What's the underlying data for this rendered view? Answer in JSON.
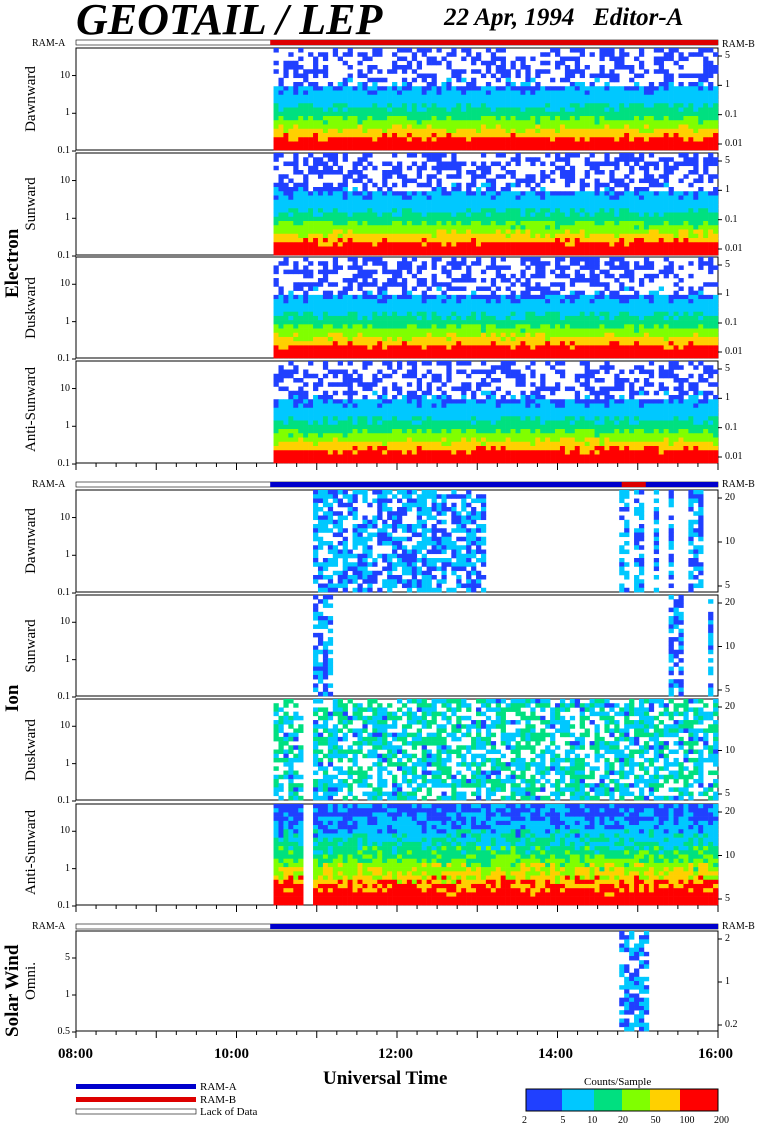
{
  "header": {
    "title": "GEOTAIL / LEP",
    "date": "22 Apr, 1994",
    "editor": "Editor-A"
  },
  "ram_labels": {
    "a": "RAM-A",
    "b": "RAM-B"
  },
  "groups": {
    "electron": "Electron",
    "ion": "Ion",
    "solar_wind": "Solar Wind"
  },
  "xaxis": {
    "label": "Universal Time",
    "ticks": [
      "08:00",
      "10:00",
      "12:00",
      "14:00",
      "16:00"
    ]
  },
  "legend": {
    "ram_a": "RAM-A",
    "ram_b": "RAM-B",
    "lack": "Lack of Data",
    "colorbar_title": "Counts/Sample",
    "colorbar_ticks": [
      "2",
      "5",
      "10",
      "20",
      "50",
      "100",
      "200"
    ]
  },
  "colors": {
    "ram_a": "#0000cc",
    "ram_b": "#dd0000"
  },
  "chart_data": {
    "type": "heatmap",
    "x_range_ut_hours": [
      8,
      16
    ],
    "panels": [
      {
        "group": "Electron",
        "name": "Dawnward",
        "left_ticks": [
          "10",
          "1",
          "0.1"
        ],
        "right_ticks": [
          "5",
          "1",
          "0.1",
          "0.01"
        ]
      },
      {
        "group": "Electron",
        "name": "Sunward",
        "left_ticks": [
          "10",
          "1",
          "0.1"
        ],
        "right_ticks": [
          "5",
          "1",
          "0.1",
          "0.01"
        ]
      },
      {
        "group": "Electron",
        "name": "Duskward",
        "left_ticks": [
          "10",
          "1",
          "0.1"
        ],
        "right_ticks": [
          "5",
          "1",
          "0.1",
          "0.01"
        ]
      },
      {
        "group": "Electron",
        "name": "Anti-Sunward",
        "left_ticks": [
          "10",
          "1",
          "0.1"
        ],
        "right_ticks": [
          "5",
          "1",
          "0.1",
          "0.01"
        ]
      },
      {
        "group": "Ion",
        "name": "Dawnward",
        "left_ticks": [
          "10",
          "1",
          "0.1"
        ],
        "right_ticks": [
          "20",
          "10",
          "5"
        ]
      },
      {
        "group": "Ion",
        "name": "Sunward",
        "left_ticks": [
          "10",
          "1",
          "0.1"
        ],
        "right_ticks": [
          "20",
          "10",
          "5"
        ]
      },
      {
        "group": "Ion",
        "name": "Duskward",
        "left_ticks": [
          "10",
          "1",
          "0.1"
        ],
        "right_ticks": [
          "20",
          "10",
          "5"
        ]
      },
      {
        "group": "Ion",
        "name": "Anti-Sunward",
        "left_ticks": [
          "10",
          "1",
          "0.1"
        ],
        "right_ticks": [
          "20",
          "10",
          "5"
        ]
      },
      {
        "group": "Solar Wind",
        "name": "Omni.",
        "left_ticks": [
          "5",
          "1",
          "0.5"
        ],
        "right_ticks": [
          "2",
          "1",
          "0.2"
        ]
      }
    ]
  }
}
